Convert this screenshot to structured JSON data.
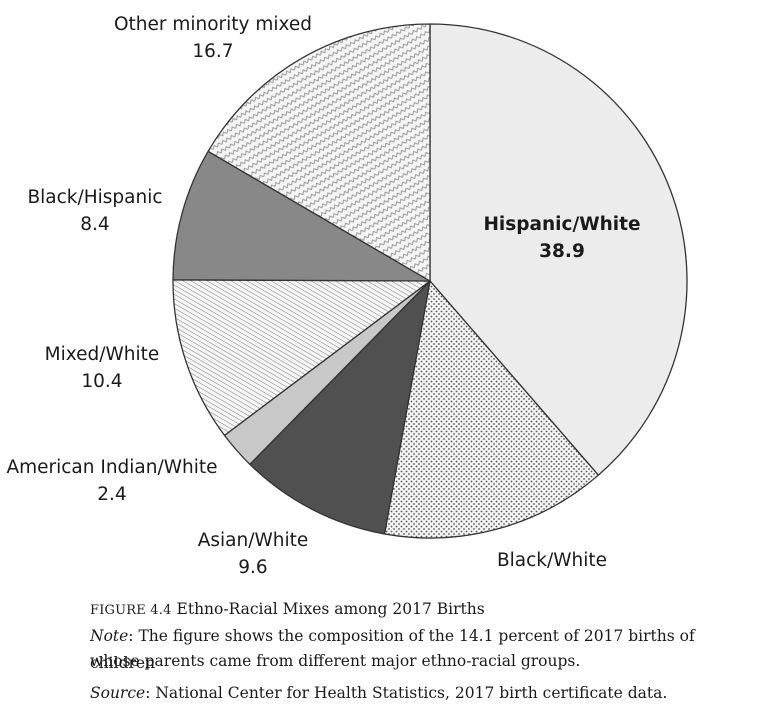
{
  "chart_data": {
    "type": "pie",
    "slices": [
      {
        "label": "Hispanic/White",
        "value": 38.9,
        "fill": "#ececec",
        "pattern": "solid"
      },
      {
        "label": "Black/White",
        "value": 14.3,
        "fill": "#f2f2f2",
        "pattern": "dots"
      },
      {
        "label": "Asian/White",
        "value": 9.6,
        "fill": "#505050",
        "pattern": "solid"
      },
      {
        "label": "American Indian/White",
        "value": 2.4,
        "fill": "#c8c8c8",
        "pattern": "solid"
      },
      {
        "label": "Mixed/White",
        "value": 10.4,
        "fill": "#f0f0f0",
        "pattern": "diagonal-lines"
      },
      {
        "label": "Black/Hispanic",
        "value": 8.4,
        "fill": "#888888",
        "pattern": "solid"
      },
      {
        "label": "Other minority mixed",
        "value": 16.7,
        "fill": "#f4f4f4",
        "pattern": "zigzag"
      }
    ],
    "labels": {
      "hispanic_white": {
        "name": "Hispanic/White",
        "value": "38.9"
      },
      "black_white": {
        "name": "Black/White"
      },
      "asian_white": {
        "name": "Asian/White",
        "value": "9.6"
      },
      "american_indian_white": {
        "name": "American Indian/White",
        "value": "2.4"
      },
      "mixed_white": {
        "name": "Mixed/White",
        "value": "10.4"
      },
      "black_hispanic": {
        "name": "Black/Hispanic",
        "value": "8.4"
      },
      "other_minority_mixed": {
        "name": "Other minority mixed",
        "value": "16.7"
      }
    },
    "start_angle_deg": 0,
    "direction": "clockwise",
    "stroke": "#333333"
  },
  "caption": {
    "figure_prefix": "FIGURE 4.4",
    "figure_title": " Ethno-Racial Mixes among 2017 Births",
    "note_label": "Note",
    "note_text_1": ": The figure shows the composition of the 14.1 percent of 2017 births of children",
    "note_text_2": "whose parents came from different major ethno-racial groups.",
    "source_label": "Source",
    "source_text": ": National Center for Health Statistics, 2017 birth certificate data."
  }
}
